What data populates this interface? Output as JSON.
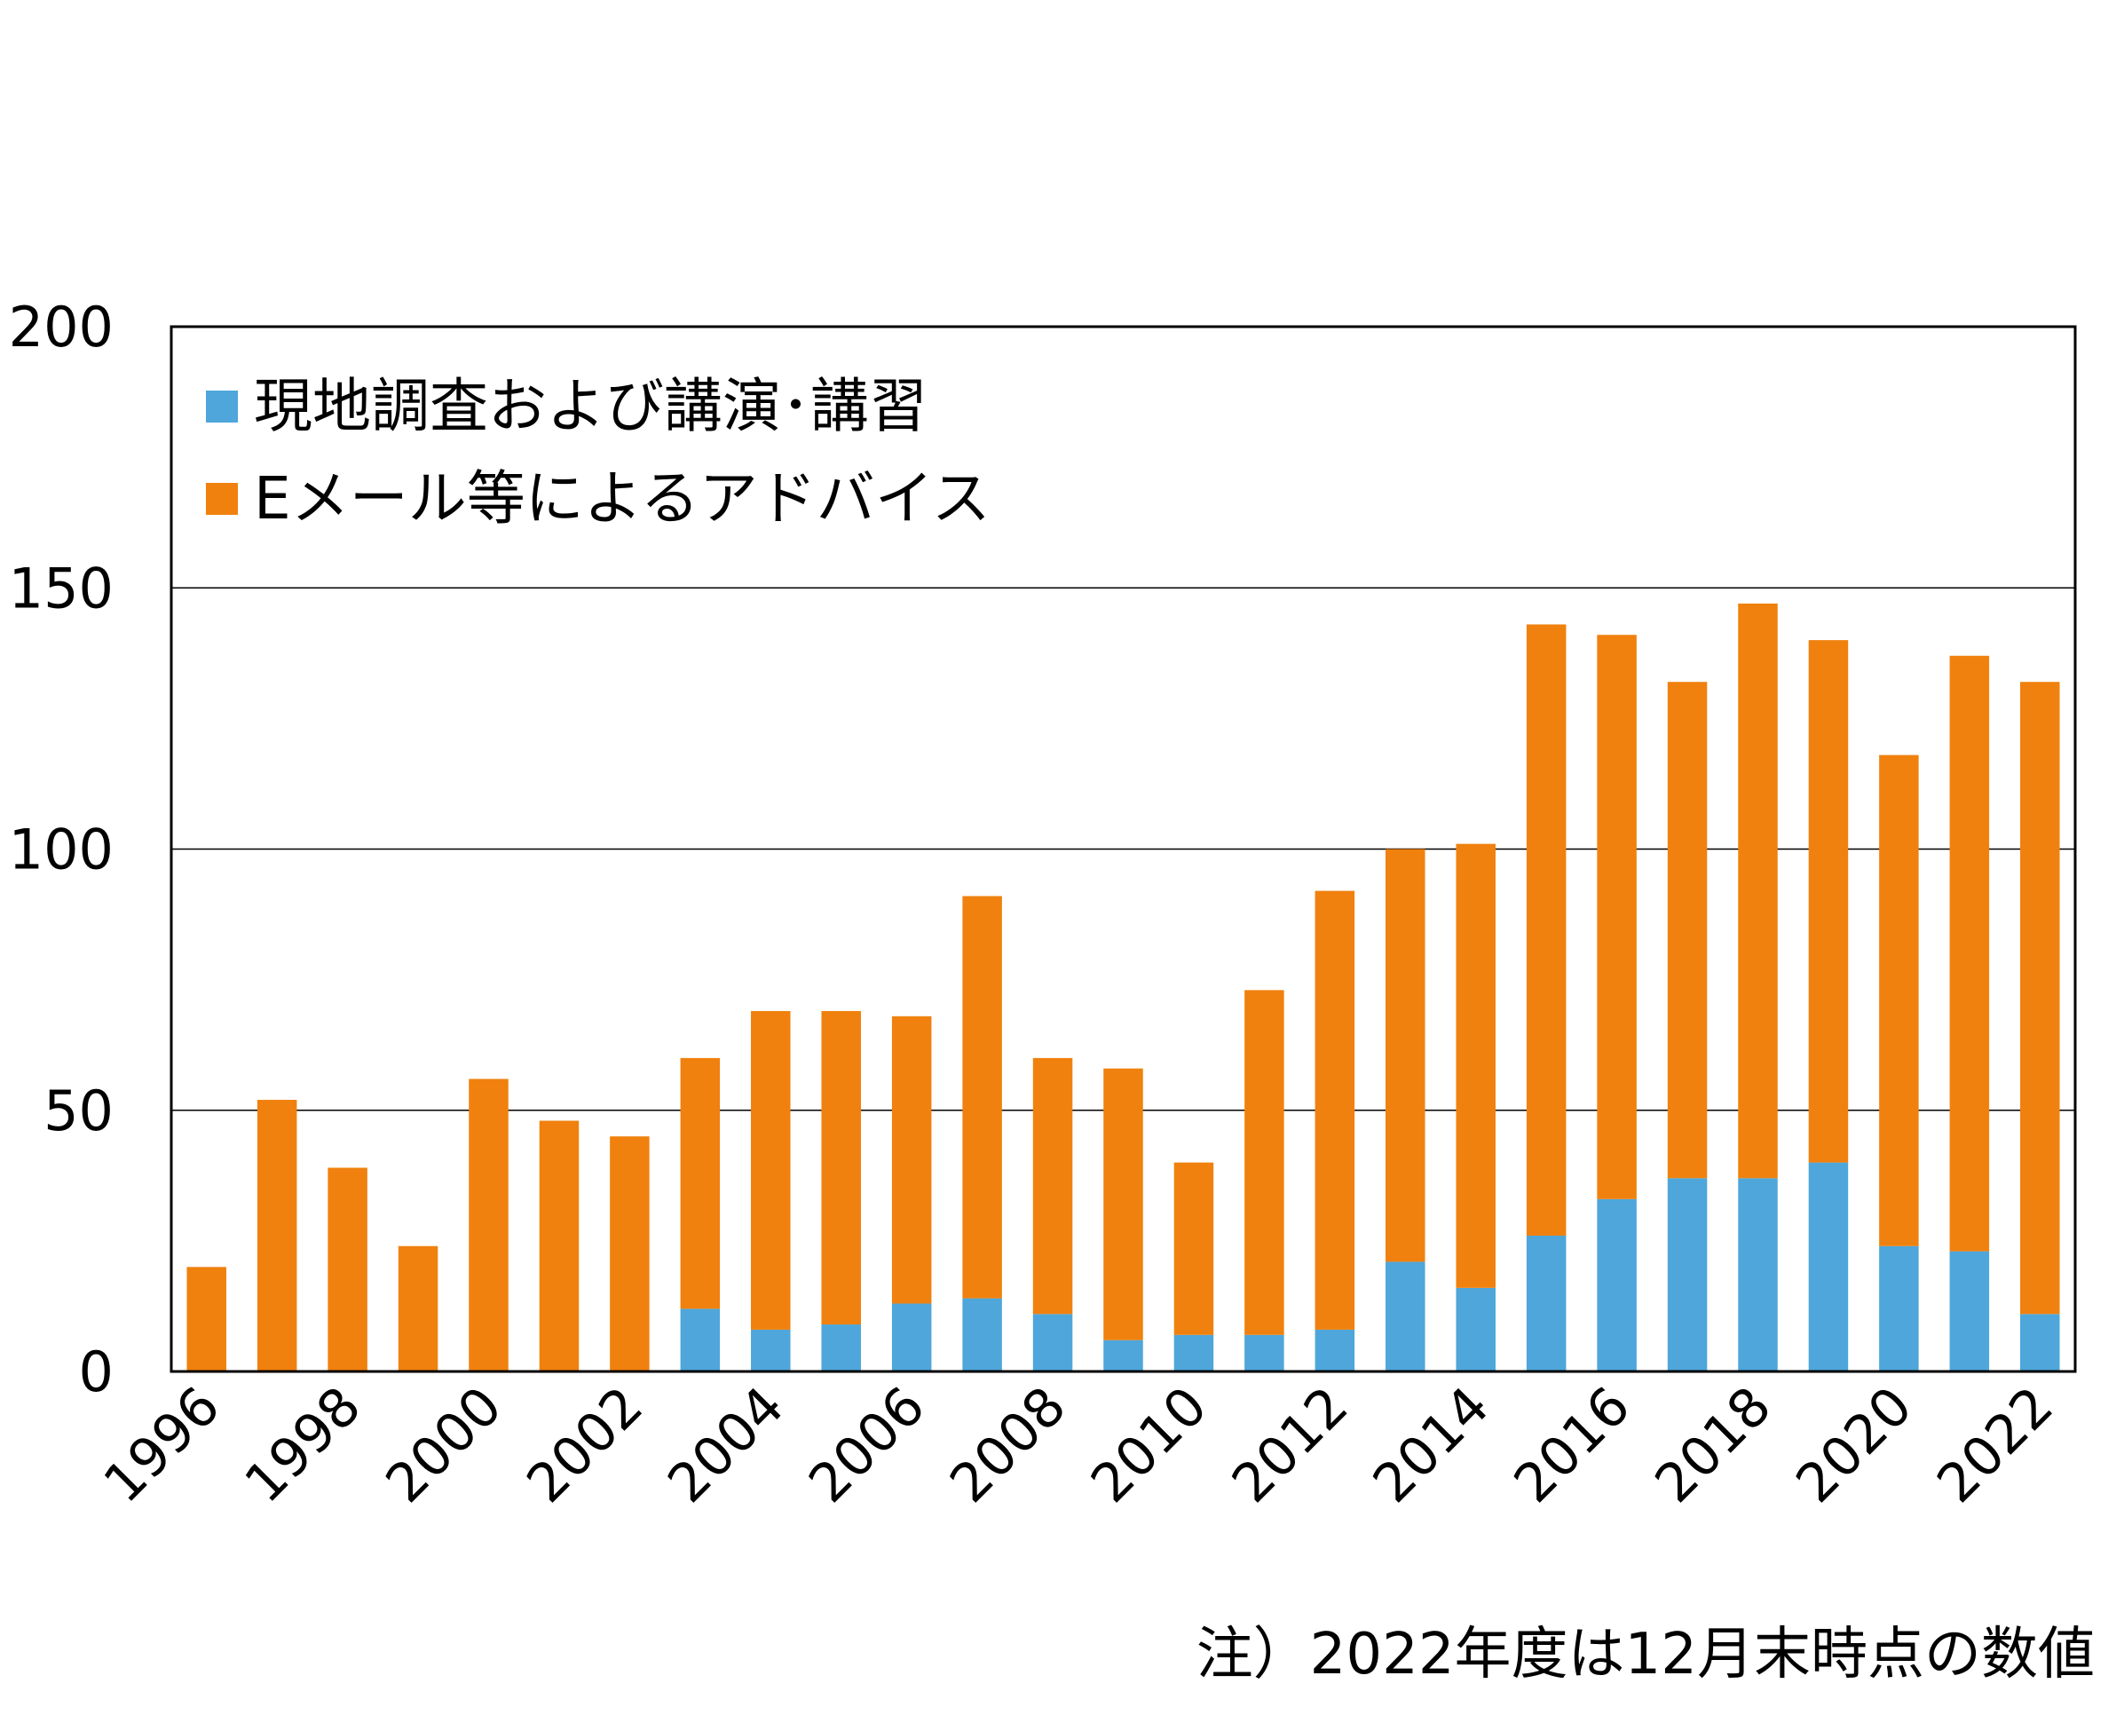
{
  "chart_data": {
    "type": "bar",
    "stacked": true,
    "categories": [
      "1996",
      "1997",
      "1998",
      "1999",
      "2000",
      "2001",
      "2002",
      "2003",
      "2004",
      "2005",
      "2006",
      "2007",
      "2008",
      "2009",
      "2010",
      "2011",
      "2012",
      "2013",
      "2014",
      "2015",
      "2016",
      "2017",
      "2018",
      "2019",
      "2020",
      "2021",
      "2022"
    ],
    "x_tick_labels": [
      "1996",
      "1998",
      "2000",
      "2002",
      "2004",
      "2006",
      "2008",
      "2010",
      "2012",
      "2014",
      "2016",
      "2018",
      "2020",
      "2022"
    ],
    "series": [
      {
        "name": "現地調査および講演･講習",
        "color": "#4EA6DA",
        "values": [
          0,
          0,
          0,
          0,
          0,
          0,
          0,
          12,
          8,
          9,
          13,
          14,
          11,
          6,
          7,
          7,
          8,
          21,
          16,
          26,
          33,
          37,
          37,
          40,
          24,
          23,
          11
        ]
      },
      {
        "name": "Eメール等によるアドバイス",
        "color": "#F0810E",
        "values": [
          20,
          52,
          39,
          24,
          56,
          48,
          45,
          48,
          61,
          60,
          55,
          77,
          49,
          52,
          33,
          66,
          84,
          79,
          85,
          117,
          108,
          95,
          110,
          100,
          94,
          114,
          121
        ]
      }
    ],
    "ylim": [
      0,
      200
    ],
    "yticks": [
      "0",
      "50",
      "100",
      "150",
      "200"
    ],
    "grid": true,
    "legend_position": "top-left",
    "title": "",
    "xlabel": "",
    "ylabel": "",
    "note": "注）2022年度は12月末時点の数値"
  }
}
